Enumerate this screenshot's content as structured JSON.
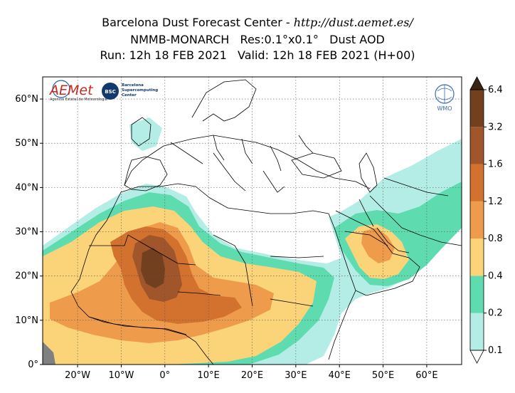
{
  "header": {
    "title_left": "Barcelona Dust Forecast Center - ",
    "title_url": "http://dust.aemet.es/",
    "line2": "NMMB-MONARCH   Res:0.1°x0.1°   Dust AOD",
    "line3": "Run: 12h 18 FEB 2021   Valid: 12h 18 FEB 2021 (H+00)"
  },
  "map": {
    "lon_range": [
      -28,
      68
    ],
    "lat_range": [
      0,
      65
    ],
    "lat_ticks": [
      {
        "lat": 60,
        "label": "60°N"
      },
      {
        "lat": 50,
        "label": "50°N"
      },
      {
        "lat": 40,
        "label": "40°N"
      },
      {
        "lat": 30,
        "label": "30°N"
      },
      {
        "lat": 20,
        "label": "20°N"
      },
      {
        "lat": 10,
        "label": "10°N"
      },
      {
        "lat": 0,
        "label": "0°"
      }
    ],
    "lon_ticks": [
      {
        "lon": -20,
        "label": "20°W"
      },
      {
        "lon": -10,
        "label": "10°W"
      },
      {
        "lon": 0,
        "label": "0°"
      },
      {
        "lon": 10,
        "label": "10°E"
      },
      {
        "lon": 20,
        "label": "20°E"
      },
      {
        "lon": 30,
        "label": "30°E"
      },
      {
        "lon": 40,
        "label": "40°E"
      },
      {
        "lon": 50,
        "label": "50°E"
      },
      {
        "lon": 60,
        "label": "60°E"
      }
    ],
    "grid": true
  },
  "colorbar": {
    "levels": [
      {
        "label": "0.1",
        "color": "#b4ede6"
      },
      {
        "label": "0.2",
        "color": "#5edcb0"
      },
      {
        "label": "0.4",
        "color": "#fbd47a"
      },
      {
        "label": "0.8",
        "color": "#ee9c4c"
      },
      {
        "label": "1.2",
        "color": "#d2722e"
      },
      {
        "label": "1.6",
        "color": "#a0552b"
      },
      {
        "label": "3.2",
        "color": "#73401f"
      },
      {
        "label": "6.4",
        "color": "#3c2414"
      }
    ]
  },
  "logos": {
    "aemet": "AEMet",
    "aemet_sub": "Agencia Estatal de Meteorología",
    "bsc_badge": "BSC",
    "bsc_name": "Barcelona\nSupercomputing\nCenter",
    "wmo": "WMO"
  }
}
